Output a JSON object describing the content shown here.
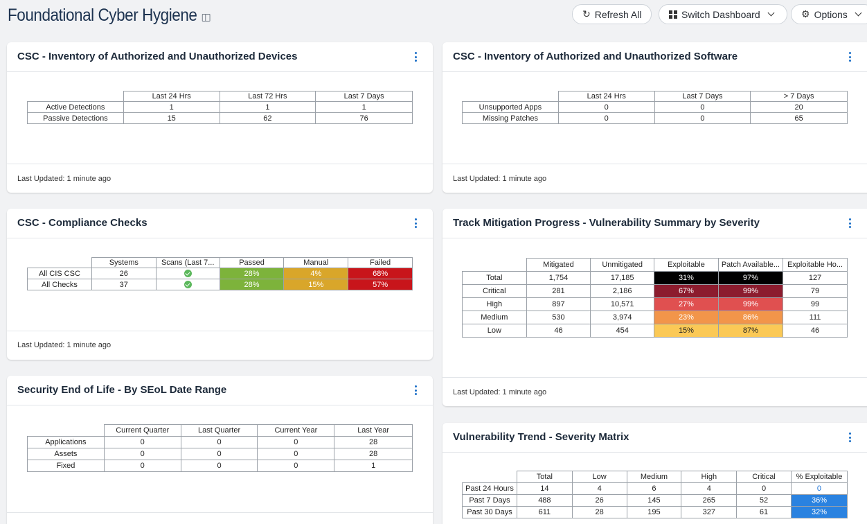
{
  "header": {
    "title": "Foundational Cyber Hygiene",
    "refresh_label": "Refresh All",
    "switch_label": "Switch Dashboard",
    "options_label": "Options"
  },
  "colors": {
    "green": "#7db33b",
    "amber": "#d9a62a",
    "red": "#c8151b",
    "black": "#000000",
    "maroon": "#8c1c2e",
    "darkred": "#b0283a",
    "rose": "#e05050",
    "orange": "#f2954a",
    "yellow": "#fbc956",
    "blue": "#2a82e0"
  },
  "cards": {
    "devices": {
      "title": "CSC - Inventory of Authorized and Unauthorized Devices",
      "footer": "Last Updated: 1 minute ago",
      "columns": [
        "Last 24 Hrs",
        "Last 72 Hrs",
        "Last 7 Days"
      ],
      "rows": [
        {
          "label": "Active Detections",
          "cells": [
            "1",
            "1",
            "1"
          ]
        },
        {
          "label": "Passive Detections",
          "cells": [
            "15",
            "62",
            "76"
          ]
        }
      ]
    },
    "software": {
      "title": "CSC - Inventory of Authorized and Unauthorized Software",
      "footer": "Last Updated: 1 minute ago",
      "columns": [
        "Last 24 Hrs",
        "Last 7 Days",
        "> 7 Days"
      ],
      "rows": [
        {
          "label": "Unsupported Apps",
          "cells": [
            "0",
            "0",
            "20"
          ]
        },
        {
          "label": "Missing Patches",
          "cells": [
            "0",
            "0",
            "65"
          ]
        }
      ]
    },
    "compliance": {
      "title": "CSC - Compliance Checks",
      "footer": "Last Updated: 1 minute ago",
      "columns": [
        "Systems",
        "Scans (Last 7...",
        "Passed",
        "Manual",
        "Failed"
      ],
      "rows": [
        {
          "label": "All CIS CSC",
          "systems": "26",
          "passed": "28%",
          "manual": "4%",
          "failed": "68%"
        },
        {
          "label": "All Checks",
          "systems": "37",
          "passed": "28%",
          "manual": "15%",
          "failed": "57%"
        }
      ]
    },
    "mitigation": {
      "title": "Track Mitigation Progress - Vulnerability Summary by Severity",
      "footer": "Last Updated: 1 minute ago",
      "columns": [
        "Mitigated",
        "Unmitigated",
        "Exploitable",
        "Patch Available...",
        "Exploitable Ho..."
      ],
      "rows": [
        {
          "label": "Total",
          "cells": [
            "1,754",
            "17,185",
            "31%",
            "97%",
            "127"
          ]
        },
        {
          "label": "Critical",
          "cells": [
            "281",
            "2,186",
            "67%",
            "99%",
            "79"
          ]
        },
        {
          "label": "High",
          "cells": [
            "897",
            "10,571",
            "27%",
            "99%",
            "99"
          ]
        },
        {
          "label": "Medium",
          "cells": [
            "530",
            "3,974",
            "23%",
            "86%",
            "111"
          ]
        },
        {
          "label": "Low",
          "cells": [
            "46",
            "454",
            "15%",
            "87%",
            "46"
          ]
        }
      ]
    },
    "seol": {
      "title": "Security End of Life - By SEoL Date Range",
      "columns": [
        "Current Quarter",
        "Last Quarter",
        "Current Year",
        "Last Year"
      ],
      "rows": [
        {
          "label": "Applications",
          "cells": [
            "0",
            "0",
            "0",
            "28"
          ]
        },
        {
          "label": "Assets",
          "cells": [
            "0",
            "0",
            "0",
            "28"
          ]
        },
        {
          "label": "Fixed",
          "cells": [
            "0",
            "0",
            "0",
            "1"
          ]
        }
      ]
    },
    "trend": {
      "title": "Vulnerability Trend - Severity Matrix",
      "columns": [
        "Total",
        "Low",
        "Medium",
        "High",
        "Critical",
        "% Exploitable"
      ],
      "rows": [
        {
          "label": "Past 24 Hours",
          "cells": [
            "14",
            "4",
            "6",
            "4",
            "0",
            "0"
          ]
        },
        {
          "label": "Past 7 Days",
          "cells": [
            "488",
            "26",
            "145",
            "265",
            "52",
            "36%"
          ]
        },
        {
          "label": "Past 30 Days",
          "cells": [
            "611",
            "28",
            "195",
            "327",
            "61",
            "32%"
          ]
        }
      ]
    }
  }
}
